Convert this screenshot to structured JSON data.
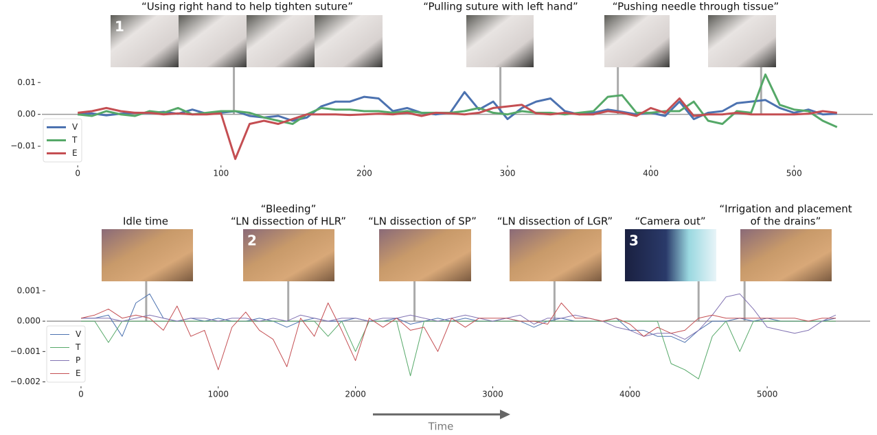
{
  "chart_data": [
    {
      "type": "line",
      "x": [
        0,
        10,
        20,
        30,
        40,
        50,
        60,
        70,
        80,
        90,
        100,
        110,
        120,
        130,
        140,
        150,
        160,
        170,
        180,
        190,
        200,
        210,
        220,
        230,
        240,
        250,
        260,
        270,
        280,
        290,
        300,
        310,
        320,
        330,
        340,
        350,
        360,
        370,
        380,
        390,
        400,
        410,
        420,
        430,
        440,
        450,
        460,
        470,
        480,
        490,
        500,
        510,
        520,
        530
      ],
      "series": [
        {
          "name": "V",
          "color": "#4c72b0",
          "values": [
            0,
            0.0003,
            -0.0003,
            0.0002,
            0.0005,
            0.0004,
            0.0008,
            0.0002,
            0.0015,
            0.0002,
            0.0005,
            0.001,
            -0.0005,
            -0.001,
            -0.0005,
            -0.002,
            -0.001,
            0.0025,
            0.004,
            0.004,
            0.0055,
            0.005,
            0.001,
            0.002,
            0.0005,
            0,
            0.0005,
            0.007,
            0.0015,
            0.004,
            -0.0015,
            0.002,
            0.004,
            0.005,
            0.001,
            0,
            0.0005,
            0.0015,
            0.0008,
            0,
            0.0005,
            -0.0005,
            0.004,
            -0.0015,
            0.0005,
            0.001,
            0.0035,
            0.004,
            0.0045,
            0.002,
            0.0005,
            0.0015,
            0,
            0.0002
          ]
        },
        {
          "name": "T",
          "color": "#55a868",
          "values": [
            0,
            -0.0005,
            0.001,
            0,
            -0.0005,
            0.001,
            0.0005,
            0.002,
            0,
            0.0005,
            0.001,
            0.001,
            0.0005,
            -0.001,
            -0.002,
            -0.003,
            0,
            0.002,
            0.0015,
            0.0015,
            0.001,
            0.001,
            0.0005,
            0.001,
            0.0005,
            0.0005,
            0.0005,
            0.001,
            0.002,
            0.0005,
            0,
            0.001,
            0.0005,
            0.0005,
            0,
            0.0005,
            0.001,
            0.0055,
            0.006,
            0.0005,
            0.0005,
            0.001,
            0.001,
            0.004,
            -0.002,
            -0.003,
            0.001,
            0.0005,
            0.0125,
            0.003,
            0.0015,
            0.001,
            -0.002,
            -0.004
          ]
        },
        {
          "name": "E",
          "color": "#c44e52",
          "values": [
            0.0005,
            0.001,
            0.002,
            0.001,
            0.0005,
            0.0005,
            0,
            0.0003,
            0,
            0,
            0.0003,
            -0.014,
            -0.003,
            -0.002,
            -0.003,
            -0.0015,
            0,
            0,
            0,
            -0.0002,
            0,
            0.0002,
            0,
            0.0005,
            -0.0005,
            0.0005,
            0.0003,
            0,
            0.0005,
            0.002,
            0.0025,
            0.003,
            0.0003,
            0,
            0.0005,
            0,
            0,
            0.001,
            0.0005,
            -0.0005,
            0.002,
            0.0005,
            0.005,
            -0.0005,
            0,
            0,
            0.0005,
            0,
            0,
            0,
            0,
            0.0002,
            0.001,
            0.0005
          ]
        }
      ],
      "xlim": [
        -25,
        555
      ],
      "ylim": [
        -0.0145,
        0.0135
      ],
      "xticks": [
        0,
        100,
        200,
        300,
        400,
        500
      ],
      "yticks": [
        {
          "value": -0.01,
          "label": "−0.01"
        },
        {
          "value": 0,
          "label": "0.00"
        },
        0.01
      ],
      "grid": false,
      "legend": "lower left",
      "annotations": [
        {
          "lines": [
            "“Using right hand to help tighten suture”"
          ],
          "x": [
            109
          ],
          "badge": "1"
        },
        {
          "lines": [
            "“Pulling suture with left hand”"
          ],
          "x": [
            295
          ]
        },
        {
          "lines": [
            "“Pushing needle through tissue”"
          ],
          "x": [
            377,
            477
          ]
        }
      ]
    },
    {
      "type": "line",
      "x": [
        0,
        100,
        200,
        300,
        400,
        500,
        600,
        700,
        800,
        900,
        1000,
        1100,
        1200,
        1300,
        1400,
        1500,
        1600,
        1700,
        1800,
        1900,
        2000,
        2100,
        2200,
        2300,
        2400,
        2500,
        2600,
        2700,
        2800,
        2900,
        3000,
        3100,
        3200,
        3300,
        3400,
        3500,
        3600,
        3700,
        3800,
        3900,
        4000,
        4100,
        4200,
        4300,
        4400,
        4500,
        4600,
        4700,
        4800,
        4900,
        5000,
        5100,
        5200,
        5300,
        5400,
        5500
      ],
      "series": [
        {
          "name": "V",
          "color": "#4c72b0",
          "values": [
            0.0001,
            0.0001,
            0.0002,
            -0.0005,
            0.0006,
            0.0009,
            0.0001,
            0,
            0.0001,
            0,
            0.0001,
            0,
            0,
            0.0001,
            0,
            -0.0002,
            0,
            0.0001,
            0,
            0,
            0.0001,
            0,
            0,
            0.0001,
            -0.0001,
            0,
            0.0001,
            0,
            0.0001,
            0,
            0,
            0.0001,
            0,
            -0.0002,
            0,
            0.0001,
            0,
            0,
            0,
            0.0001,
            -0.0003,
            -0.0003,
            -0.0005,
            -0.0005,
            -0.0007,
            -0.0003,
            0,
            0,
            0.0001,
            0,
            0.0001,
            0,
            0,
            0,
            0,
            0.0001
          ]
        },
        {
          "name": "T",
          "color": "#55a868",
          "values": [
            0,
            0,
            -0.0007,
            0,
            0,
            0,
            0,
            0,
            0,
            0,
            0,
            0,
            0,
            0,
            0,
            0,
            0,
            0,
            -0.0005,
            0,
            -0.001,
            0,
            0,
            0,
            -0.0018,
            0,
            0,
            0,
            0,
            0,
            0,
            0,
            0,
            0,
            0,
            0,
            0,
            0,
            0,
            0,
            0,
            0,
            0,
            -0.0014,
            -0.0016,
            -0.0019,
            -0.0005,
            0,
            -0.001,
            0,
            0,
            0,
            0,
            0,
            0,
            0
          ]
        },
        {
          "name": "P",
          "color": "#8172b2",
          "values": [
            0.0001,
            0.0001,
            0.0001,
            0,
            0.0001,
            0.0002,
            0.0001,
            0,
            0.0001,
            0.0001,
            0,
            0.0001,
            0.0001,
            0,
            0.0001,
            0,
            0.0002,
            0.0001,
            0,
            0.0001,
            0.0001,
            0,
            0.0001,
            0.0001,
            0.0002,
            0.0001,
            0,
            0.0001,
            0.0002,
            0.0001,
            0,
            0.0001,
            0.0002,
            -0.0001,
            0.0001,
            0.0001,
            0.0002,
            0.0001,
            0,
            -0.0002,
            -0.0003,
            -0.0005,
            -0.0004,
            -0.0004,
            -0.0006,
            -0.0003,
            0.0002,
            0.0008,
            0.0009,
            0.0004,
            -0.0002,
            -0.0003,
            -0.0004,
            -0.0003,
            0,
            0.0002
          ]
        },
        {
          "name": "E",
          "color": "#c44e52",
          "values": [
            0.0001,
            0.0002,
            0.0004,
            0.0001,
            0.0002,
            0.0001,
            -0.0003,
            0.0005,
            -0.0005,
            -0.0003,
            -0.0016,
            -0.0002,
            0.0003,
            -0.0003,
            -0.0006,
            -0.0015,
            0.0001,
            -0.0005,
            0.0006,
            -0.0003,
            -0.0013,
            0.0001,
            -0.0002,
            0.0001,
            -0.0003,
            -0.0002,
            -0.001,
            0.0001,
            -0.0002,
            0.0001,
            0.0001,
            0.0001,
            0,
            0,
            -0.0001,
            0.0006,
            0.0001,
            0.0001,
            0,
            0.0001,
            -0.0001,
            -0.0005,
            -0.0002,
            -0.0004,
            -0.0003,
            0.0001,
            0.0002,
            0.0001,
            0.0001,
            0.0001,
            0.0001,
            0.0001,
            0.0001,
            0,
            0.0001,
            0.0001
          ]
        }
      ],
      "xlim": [
        -250,
        5750
      ],
      "ylim": [
        -0.0021,
        0.0012
      ],
      "xticks": [
        0,
        1000,
        2000,
        3000,
        4000,
        5000
      ],
      "yticks": [
        {
          "value": -0.002,
          "label": "−0.002"
        },
        {
          "value": -0.001,
          "label": "−0.001"
        },
        {
          "value": 0,
          "label": "0.000"
        },
        0.001
      ],
      "grid": false,
      "legend": "lower left",
      "xlabel": "Time",
      "annotations": [
        {
          "lines": [
            "Idle time"
          ],
          "x": [
            475
          ]
        },
        {
          "lines": [
            "“Bleeding”",
            "“LN dissection of HLR”"
          ],
          "x": [
            1510
          ],
          "badge": "2"
        },
        {
          "lines": [
            "“LN dissection of SP”"
          ],
          "x": [
            2430
          ]
        },
        {
          "lines": [
            "“LN dissection of LGR”"
          ],
          "x": [
            3450
          ]
        },
        {
          "lines": [
            "“Camera out”"
          ],
          "x": [
            4500
          ],
          "badge": "3"
        },
        {
          "lines": [
            "“Irrigation and placement",
            "of the drains”"
          ],
          "x": [
            4835
          ]
        }
      ]
    }
  ]
}
